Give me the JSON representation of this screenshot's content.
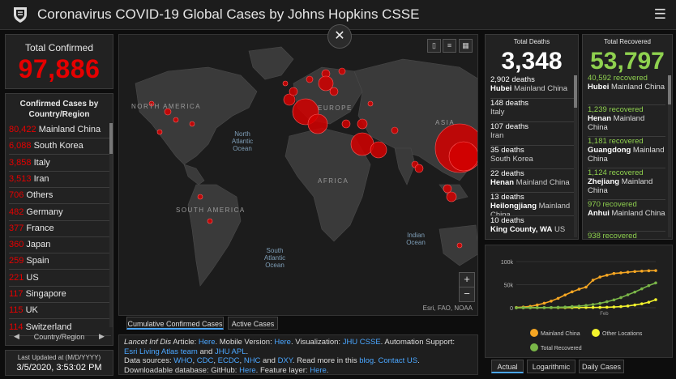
{
  "header": {
    "title": "Coronavirus COVID-19 Global Cases by Johns Hopkins CSSE",
    "menu_icon": "hamburger-menu-icon",
    "logo_icon": "university-shield-icon"
  },
  "total_confirmed": {
    "label": "Total Confirmed",
    "value": "97,886"
  },
  "confirmed_list": {
    "heading": "Confirmed Cases by Country/Region",
    "rows": [
      {
        "count": "80,422",
        "country": "Mainland China"
      },
      {
        "count": "6,088",
        "country": "South Korea"
      },
      {
        "count": "3,858",
        "country": "Italy"
      },
      {
        "count": "3,513",
        "country": "Iran"
      },
      {
        "count": "706",
        "country": "Others"
      },
      {
        "count": "482",
        "country": "Germany"
      },
      {
        "count": "377",
        "country": "France"
      },
      {
        "count": "360",
        "country": "Japan"
      },
      {
        "count": "259",
        "country": "Spain"
      },
      {
        "count": "221",
        "country": "US"
      },
      {
        "count": "117",
        "country": "Singapore"
      },
      {
        "count": "115",
        "country": "UK"
      },
      {
        "count": "114",
        "country": "Switzerland"
      }
    ],
    "pager_label": "Country/Region"
  },
  "last_updated": {
    "label": "Last Updated at (M/D/YYYY)",
    "value": "3/5/2020, 3:53:02 PM"
  },
  "map": {
    "continents": [
      "NORTH AMERICA",
      "EUROPE",
      "ASIA",
      "AFRICA",
      "SOUTH AMERICA"
    ],
    "oceans": [
      "North Atlantic Ocean",
      "South Atlantic Ocean",
      "Indian Ocean"
    ],
    "attribution": "Esri, FAO, NOAA",
    "close_symbol": "✕",
    "zoom_in": "+",
    "zoom_out": "−",
    "tabs": [
      "Cumulative Confirmed Cases",
      "Active Cases"
    ]
  },
  "info": {
    "line1_pre": "Lancet Inf Dis",
    "line1_a": " Article: ",
    "here1": "Here",
    "line1_b": ". Mobile Version: ",
    "here2": "Here",
    "line1_c": ". Visualization: ",
    "jhu": "JHU CSSE",
    "line1_d": ". Automation Support:",
    "line2_a": "Esri Living Atlas team",
    "line2_b": " and ",
    "line2_c": "JHU APL",
    "line2_d": ".",
    "line3_pre": "Data sources: ",
    "src1": "WHO",
    "src2": "CDC",
    "src3": "ECDC",
    "src4": "NHC",
    "src_and": " and ",
    "src5": "DXY",
    "line3_b": ". Read more in this ",
    "blog": "blog",
    "line3_c": ". ",
    "contact": "Contact US",
    "line3_d": ".",
    "line4_a": "Downloadable database: GitHub: ",
    "here3": "Here",
    "line4_b": ". Feature layer: ",
    "here4": "Here",
    "line4_c": "."
  },
  "total_deaths": {
    "label": "Total Deaths",
    "value": "3,348",
    "rows": [
      {
        "count": "2,902 deaths",
        "place": "Hubei",
        "rest": " Mainland China"
      },
      {
        "count": "148 deaths",
        "place": "",
        "rest": "Italy"
      },
      {
        "count": "107 deaths",
        "place": "",
        "rest": "Iran"
      },
      {
        "count": "35 deaths",
        "place": "",
        "rest": "South Korea"
      },
      {
        "count": "22 deaths",
        "place": "Henan",
        "rest": " Mainland China"
      },
      {
        "count": "13 deaths",
        "place": "Heilongjiang",
        "rest": " Mainland China"
      },
      {
        "count": "10 deaths",
        "place": "King County, WA",
        "rest": " US"
      }
    ]
  },
  "total_recovered": {
    "label": "Total Recovered",
    "value": "53,797",
    "rows": [
      {
        "count": "40,592 recovered",
        "place": "Hubei",
        "rest": " Mainland China"
      },
      {
        "count": "1,239 recovered",
        "place": "Henan",
        "rest": " Mainland China"
      },
      {
        "count": "1,181 recovered",
        "place": "Guangdong",
        "rest": " Mainland China"
      },
      {
        "count": "1,124 recovered",
        "place": "Zhejiang",
        "rest": " Mainland China"
      },
      {
        "count": "970 recovered",
        "place": "Anhui",
        "rest": " Mainland China"
      },
      {
        "count": "938 recovered",
        "place": "",
        "rest": ""
      }
    ]
  },
  "chart_data": {
    "type": "line",
    "y_ticks": [
      "100k",
      "50k",
      "0"
    ],
    "ylim": [
      0,
      100000
    ],
    "x_tick": "Feb",
    "x": [
      0,
      1,
      2,
      3,
      4,
      5,
      6,
      7,
      8,
      9,
      10,
      11,
      12,
      13,
      14,
      15,
      16,
      17,
      18,
      19,
      20
    ],
    "series": [
      {
        "name": "Mainland China",
        "color": "#f5a623",
        "values": [
          600,
          1500,
          3000,
          6000,
          9700,
          14400,
          20400,
          27600,
          34500,
          40200,
          44700,
          59800,
          66500,
          70500,
          74200,
          75600,
          77000,
          78500,
          79400,
          80100,
          80400
        ]
      },
      {
        "name": "Other Locations",
        "color": "#f3f32c",
        "values": [
          0,
          50,
          100,
          150,
          200,
          250,
          300,
          350,
          400,
          450,
          500,
          550,
          700,
          1000,
          1600,
          2500,
          3800,
          6000,
          8500,
          12000,
          17400
        ]
      },
      {
        "name": "Total Recovered",
        "color": "#7ab648",
        "values": [
          0,
          30,
          60,
          120,
          250,
          500,
          900,
          1500,
          2500,
          3500,
          5000,
          7000,
          9500,
          13000,
          17000,
          22000,
          28000,
          34000,
          41000,
          48000,
          53800
        ]
      }
    ],
    "tabs": [
      "Actual",
      "Logarithmic",
      "Daily Cases"
    ]
  }
}
